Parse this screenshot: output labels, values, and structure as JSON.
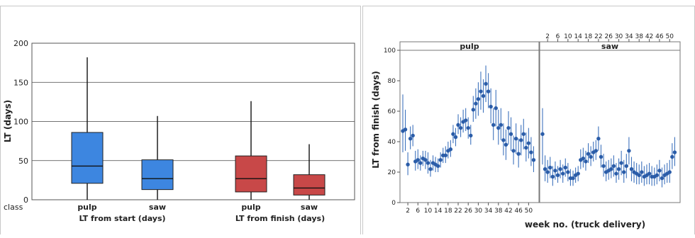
{
  "chart_data": [
    {
      "type": "box",
      "ylabel": "LT (days)",
      "ylim": [
        0,
        200
      ],
      "yticks": [
        0,
        50,
        100,
        150,
        200
      ],
      "class_label": "class",
      "grid": "horizontal",
      "groups": [
        {
          "label": "LT from start (days)",
          "boxes": [
            {
              "category": "pulp",
              "color": "#3d86e0",
              "min": 0,
              "q1": 21,
              "median": 43,
              "q3": 86,
              "max": 182
            },
            {
              "category": "saw",
              "color": "#3d86e0",
              "min": 0,
              "q1": 13,
              "median": 27,
              "q3": 51,
              "max": 107
            }
          ]
        },
        {
          "label": "LT from finish (days)",
          "boxes": [
            {
              "category": "pulp",
              "color": "#c84848",
              "min": 0,
              "q1": 10,
              "median": 27,
              "q3": 56,
              "max": 126
            },
            {
              "category": "saw",
              "color": "#c84848",
              "min": 0,
              "q1": 6,
              "median": 15,
              "q3": 32,
              "max": 71
            }
          ]
        }
      ]
    },
    {
      "type": "scatter",
      "xlabel": "week no. (truck delivery)",
      "ylabel": "LT from finish (days)",
      "ylim": [
        0,
        100
      ],
      "yticks": [
        0,
        20,
        40,
        60,
        80,
        100
      ],
      "xlim": [
        0,
        53
      ],
      "xticks": [
        2,
        6,
        10,
        14,
        18,
        22,
        26,
        30,
        34,
        38,
        42,
        46,
        50
      ],
      "marker_color": "#2a5ca8",
      "error_bars": true,
      "series": [
        {
          "name": "pulp",
          "points": [
            {
              "x": 0,
              "y": 47,
              "lo": 33,
              "hi": 71
            },
            {
              "x": 1,
              "y": 48,
              "lo": 34,
              "hi": 61
            },
            {
              "x": 2,
              "y": 25,
              "lo": 18,
              "hi": 33
            },
            {
              "x": 3,
              "y": 42,
              "lo": 35,
              "hi": 50
            },
            {
              "x": 4,
              "y": 44,
              "lo": 37,
              "hi": 51
            },
            {
              "x": 5,
              "y": 27,
              "lo": 21,
              "hi": 34
            },
            {
              "x": 6,
              "y": 28,
              "lo": 22,
              "hi": 35
            },
            {
              "x": 7,
              "y": 26,
              "lo": 21,
              "hi": 31
            },
            {
              "x": 8,
              "y": 29,
              "lo": 24,
              "hi": 34
            },
            {
              "x": 9,
              "y": 28,
              "lo": 22,
              "hi": 34
            },
            {
              "x": 10,
              "y": 26,
              "lo": 19,
              "hi": 33
            },
            {
              "x": 11,
              "y": 22,
              "lo": 17,
              "hi": 28
            },
            {
              "x": 12,
              "y": 26,
              "lo": 21,
              "hi": 31
            },
            {
              "x": 13,
              "y": 25,
              "lo": 20,
              "hi": 30
            },
            {
              "x": 14,
              "y": 24,
              "lo": 20,
              "hi": 29
            },
            {
              "x": 15,
              "y": 28,
              "lo": 23,
              "hi": 33
            },
            {
              "x": 16,
              "y": 31,
              "lo": 26,
              "hi": 36
            },
            {
              "x": 17,
              "y": 31,
              "lo": 26,
              "hi": 37
            },
            {
              "x": 18,
              "y": 34,
              "lo": 29,
              "hi": 40
            },
            {
              "x": 19,
              "y": 35,
              "lo": 30,
              "hi": 41
            },
            {
              "x": 20,
              "y": 45,
              "lo": 39,
              "hi": 51
            },
            {
              "x": 21,
              "y": 43,
              "lo": 37,
              "hi": 49
            },
            {
              "x": 22,
              "y": 51,
              "lo": 45,
              "hi": 58
            },
            {
              "x": 23,
              "y": 49,
              "lo": 43,
              "hi": 56
            },
            {
              "x": 24,
              "y": 53,
              "lo": 46,
              "hi": 61
            },
            {
              "x": 25,
              "y": 54,
              "lo": 47,
              "hi": 62
            },
            {
              "x": 26,
              "y": 49,
              "lo": 42,
              "hi": 56
            },
            {
              "x": 27,
              "y": 44,
              "lo": 38,
              "hi": 51
            },
            {
              "x": 28,
              "y": 61,
              "lo": 53,
              "hi": 70
            },
            {
              "x": 29,
              "y": 65,
              "lo": 55,
              "hi": 75
            },
            {
              "x": 30,
              "y": 68,
              "lo": 57,
              "hi": 79
            },
            {
              "x": 31,
              "y": 73,
              "lo": 61,
              "hi": 86
            },
            {
              "x": 32,
              "y": 70,
              "lo": 59,
              "hi": 81
            },
            {
              "x": 33,
              "y": 78,
              "lo": 66,
              "hi": 90
            },
            {
              "x": 34,
              "y": 73,
              "lo": 62,
              "hi": 85
            },
            {
              "x": 35,
              "y": 63,
              "lo": 52,
              "hi": 75
            },
            {
              "x": 36,
              "y": 51,
              "lo": 41,
              "hi": 62
            },
            {
              "x": 37,
              "y": 62,
              "lo": 50,
              "hi": 74
            },
            {
              "x": 38,
              "y": 49,
              "lo": 38,
              "hi": 61
            },
            {
              "x": 39,
              "y": 51,
              "lo": 41,
              "hi": 62
            },
            {
              "x": 40,
              "y": 41,
              "lo": 31,
              "hi": 52
            },
            {
              "x": 41,
              "y": 38,
              "lo": 28,
              "hi": 48
            },
            {
              "x": 42,
              "y": 49,
              "lo": 38,
              "hi": 60
            },
            {
              "x": 43,
              "y": 45,
              "lo": 34,
              "hi": 56
            },
            {
              "x": 44,
              "y": 34,
              "lo": 25,
              "hi": 44
            },
            {
              "x": 45,
              "y": 42,
              "lo": 32,
              "hi": 52
            },
            {
              "x": 46,
              "y": 32,
              "lo": 23,
              "hi": 42
            },
            {
              "x": 47,
              "y": 41,
              "lo": 31,
              "hi": 51
            },
            {
              "x": 48,
              "y": 45,
              "lo": 35,
              "hi": 55
            },
            {
              "x": 49,
              "y": 36,
              "lo": 27,
              "hi": 46
            },
            {
              "x": 50,
              "y": 39,
              "lo": 29,
              "hi": 49
            },
            {
              "x": 51,
              "y": 33,
              "lo": 24,
              "hi": 43
            },
            {
              "x": 52,
              "y": 28,
              "lo": 20,
              "hi": 37
            }
          ]
        },
        {
          "name": "saw",
          "points": [
            {
              "x": 0,
              "y": 45,
              "lo": 25,
              "hi": 62
            },
            {
              "x": 1,
              "y": 22,
              "lo": 14,
              "hi": 31
            },
            {
              "x": 2,
              "y": 20,
              "lo": 13,
              "hi": 28
            },
            {
              "x": 3,
              "y": 23,
              "lo": 16,
              "hi": 30
            },
            {
              "x": 4,
              "y": 17,
              "lo": 11,
              "hi": 24
            },
            {
              "x": 5,
              "y": 21,
              "lo": 15,
              "hi": 27
            },
            {
              "x": 6,
              "y": 18,
              "lo": 13,
              "hi": 24
            },
            {
              "x": 7,
              "y": 22,
              "lo": 16,
              "hi": 28
            },
            {
              "x": 8,
              "y": 19,
              "lo": 13,
              "hi": 25
            },
            {
              "x": 9,
              "y": 23,
              "lo": 17,
              "hi": 29
            },
            {
              "x": 10,
              "y": 20,
              "lo": 14,
              "hi": 26
            },
            {
              "x": 11,
              "y": 16,
              "lo": 11,
              "hi": 22
            },
            {
              "x": 12,
              "y": 16,
              "lo": 11,
              "hi": 21
            },
            {
              "x": 13,
              "y": 18,
              "lo": 13,
              "hi": 23
            },
            {
              "x": 14,
              "y": 19,
              "lo": 14,
              "hi": 24
            },
            {
              "x": 15,
              "y": 28,
              "lo": 22,
              "hi": 35
            },
            {
              "x": 16,
              "y": 29,
              "lo": 23,
              "hi": 36
            },
            {
              "x": 17,
              "y": 27,
              "lo": 21,
              "hi": 34
            },
            {
              "x": 18,
              "y": 32,
              "lo": 26,
              "hi": 39
            },
            {
              "x": 19,
              "y": 30,
              "lo": 24,
              "hi": 37
            },
            {
              "x": 20,
              "y": 33,
              "lo": 27,
              "hi": 40
            },
            {
              "x": 21,
              "y": 34,
              "lo": 28,
              "hi": 41
            },
            {
              "x": 22,
              "y": 42,
              "lo": 34,
              "hi": 50
            },
            {
              "x": 23,
              "y": 30,
              "lo": 23,
              "hi": 38
            },
            {
              "x": 24,
              "y": 24,
              "lo": 17,
              "hi": 32
            },
            {
              "x": 25,
              "y": 20,
              "lo": 14,
              "hi": 27
            },
            {
              "x": 26,
              "y": 21,
              "lo": 15,
              "hi": 28
            },
            {
              "x": 27,
              "y": 22,
              "lo": 16,
              "hi": 29
            },
            {
              "x": 28,
              "y": 24,
              "lo": 17,
              "hi": 31
            },
            {
              "x": 29,
              "y": 19,
              "lo": 13,
              "hi": 26
            },
            {
              "x": 30,
              "y": 22,
              "lo": 15,
              "hi": 29
            },
            {
              "x": 31,
              "y": 26,
              "lo": 18,
              "hi": 34
            },
            {
              "x": 32,
              "y": 20,
              "lo": 13,
              "hi": 28
            },
            {
              "x": 33,
              "y": 24,
              "lo": 16,
              "hi": 32
            },
            {
              "x": 34,
              "y": 34,
              "lo": 25,
              "hi": 43
            },
            {
              "x": 35,
              "y": 22,
              "lo": 14,
              "hi": 30
            },
            {
              "x": 36,
              "y": 20,
              "lo": 13,
              "hi": 27
            },
            {
              "x": 37,
              "y": 19,
              "lo": 12,
              "hi": 26
            },
            {
              "x": 38,
              "y": 18,
              "lo": 12,
              "hi": 25
            },
            {
              "x": 39,
              "y": 20,
              "lo": 13,
              "hi": 27
            },
            {
              "x": 40,
              "y": 17,
              "lo": 11,
              "hi": 24
            },
            {
              "x": 41,
              "y": 18,
              "lo": 12,
              "hi": 25
            },
            {
              "x": 42,
              "y": 19,
              "lo": 12,
              "hi": 26
            },
            {
              "x": 43,
              "y": 17,
              "lo": 11,
              "hi": 24
            },
            {
              "x": 44,
              "y": 17,
              "lo": 11,
              "hi": 23
            },
            {
              "x": 45,
              "y": 18,
              "lo": 12,
              "hi": 25
            },
            {
              "x": 46,
              "y": 21,
              "lo": 14,
              "hi": 28
            },
            {
              "x": 47,
              "y": 16,
              "lo": 10,
              "hi": 23
            },
            {
              "x": 48,
              "y": 18,
              "lo": 12,
              "hi": 25
            },
            {
              "x": 49,
              "y": 19,
              "lo": 13,
              "hi": 26
            },
            {
              "x": 50,
              "y": 20,
              "lo": 13,
              "hi": 28
            },
            {
              "x": 51,
              "y": 30,
              "lo": 22,
              "hi": 39
            },
            {
              "x": 52,
              "y": 33,
              "lo": 24,
              "hi": 43
            }
          ]
        }
      ]
    }
  ]
}
